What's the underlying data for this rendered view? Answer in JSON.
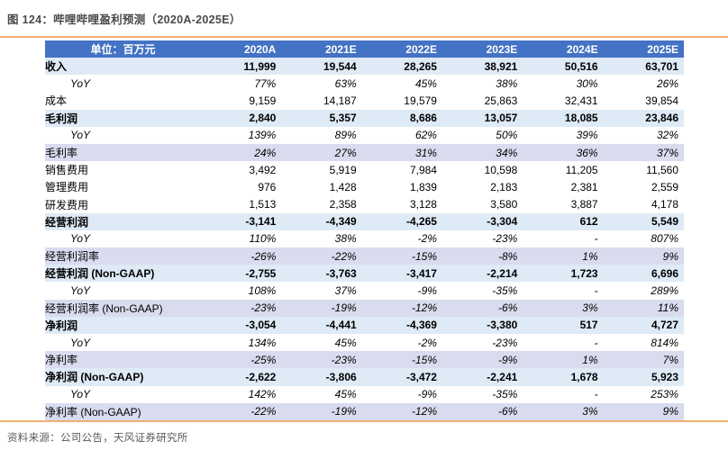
{
  "title": "图 124：哔哩哔哩盈利预测（2020A-2025E）",
  "source": "资料来源：公司公告，天风证券研究所",
  "colors": {
    "accent_rule_orange": "#F2AE72",
    "header_bg_blue": "#4472C4",
    "header_text": "#FFFFFF",
    "section_row_bg_lightblue": "#DEEAF6",
    "rate_row_bg_lavender": "#D9DCEE",
    "title_gray": "#4A4A4A",
    "source_gray": "#595959"
  },
  "table": {
    "unit_header": "单位：百万元",
    "columns": [
      "2020A",
      "2021E",
      "2022E",
      "2023E",
      "2024E",
      "2025E"
    ],
    "rows": [
      {
        "label": "收入",
        "style": "bold",
        "values": [
          "11,999",
          "19,544",
          "28,265",
          "38,921",
          "50,516",
          "63,701"
        ]
      },
      {
        "label": "YoY",
        "style": "yoy",
        "values": [
          "77%",
          "63%",
          "45%",
          "38%",
          "30%",
          "26%"
        ]
      },
      {
        "label": "成本",
        "style": "plain",
        "values": [
          "9,159",
          "14,187",
          "19,579",
          "25,863",
          "32,431",
          "39,854"
        ]
      },
      {
        "label": "毛利润",
        "style": "bold",
        "values": [
          "2,840",
          "5,357",
          "8,686",
          "13,057",
          "18,085",
          "23,846"
        ]
      },
      {
        "label": "YoY",
        "style": "yoy",
        "values": [
          "139%",
          "89%",
          "62%",
          "50%",
          "39%",
          "32%"
        ]
      },
      {
        "label": "毛利率",
        "style": "rate",
        "values": [
          "24%",
          "27%",
          "31%",
          "34%",
          "36%",
          "37%"
        ]
      },
      {
        "label": "销售费用",
        "style": "plain",
        "values": [
          "3,492",
          "5,919",
          "7,984",
          "10,598",
          "11,205",
          "11,560"
        ]
      },
      {
        "label": "管理费用",
        "style": "plain",
        "values": [
          "976",
          "1,428",
          "1,839",
          "2,183",
          "2,381",
          "2,559"
        ]
      },
      {
        "label": "研发费用",
        "style": "plain",
        "values": [
          "1,513",
          "2,358",
          "3,128",
          "3,580",
          "3,887",
          "4,178"
        ]
      },
      {
        "label": "经营利润",
        "style": "bold",
        "values": [
          "-3,141",
          "-4,349",
          "-4,265",
          "-3,304",
          "612",
          "5,549"
        ]
      },
      {
        "label": "YoY",
        "style": "yoy",
        "values": [
          "110%",
          "38%",
          "-2%",
          "-23%",
          "-",
          "807%"
        ]
      },
      {
        "label": "经营利润率",
        "style": "rate",
        "values": [
          "-26%",
          "-22%",
          "-15%",
          "-8%",
          "1%",
          "9%"
        ]
      },
      {
        "label": "经营利润 (Non-GAAP)",
        "style": "bold",
        "values": [
          "-2,755",
          "-3,763",
          "-3,417",
          "-2,214",
          "1,723",
          "6,696"
        ]
      },
      {
        "label": "YoY",
        "style": "yoy",
        "values": [
          "108%",
          "37%",
          "-9%",
          "-35%",
          "-",
          "289%"
        ]
      },
      {
        "label": "经营利润率 (Non-GAAP)",
        "style": "rate",
        "values": [
          "-23%",
          "-19%",
          "-12%",
          "-6%",
          "3%",
          "11%"
        ]
      },
      {
        "label": "净利润",
        "style": "bold",
        "values": [
          "-3,054",
          "-4,441",
          "-4,369",
          "-3,380",
          "517",
          "4,727"
        ]
      },
      {
        "label": "YoY",
        "style": "yoy",
        "values": [
          "134%",
          "45%",
          "-2%",
          "-23%",
          "-",
          "814%"
        ]
      },
      {
        "label": "净利率",
        "style": "rate",
        "values": [
          "-25%",
          "-23%",
          "-15%",
          "-9%",
          "1%",
          "7%"
        ]
      },
      {
        "label": "净利润 (Non-GAAP)",
        "style": "bold",
        "values": [
          "-2,622",
          "-3,806",
          "-3,472",
          "-2,241",
          "1,678",
          "5,923"
        ]
      },
      {
        "label": "YoY",
        "style": "yoy",
        "values": [
          "142%",
          "45%",
          "-9%",
          "-35%",
          "-",
          "253%"
        ]
      },
      {
        "label": "净利率 (Non-GAAP)",
        "style": "rate",
        "values": [
          "-22%",
          "-19%",
          "-12%",
          "-6%",
          "3%",
          "9%"
        ]
      }
    ]
  }
}
